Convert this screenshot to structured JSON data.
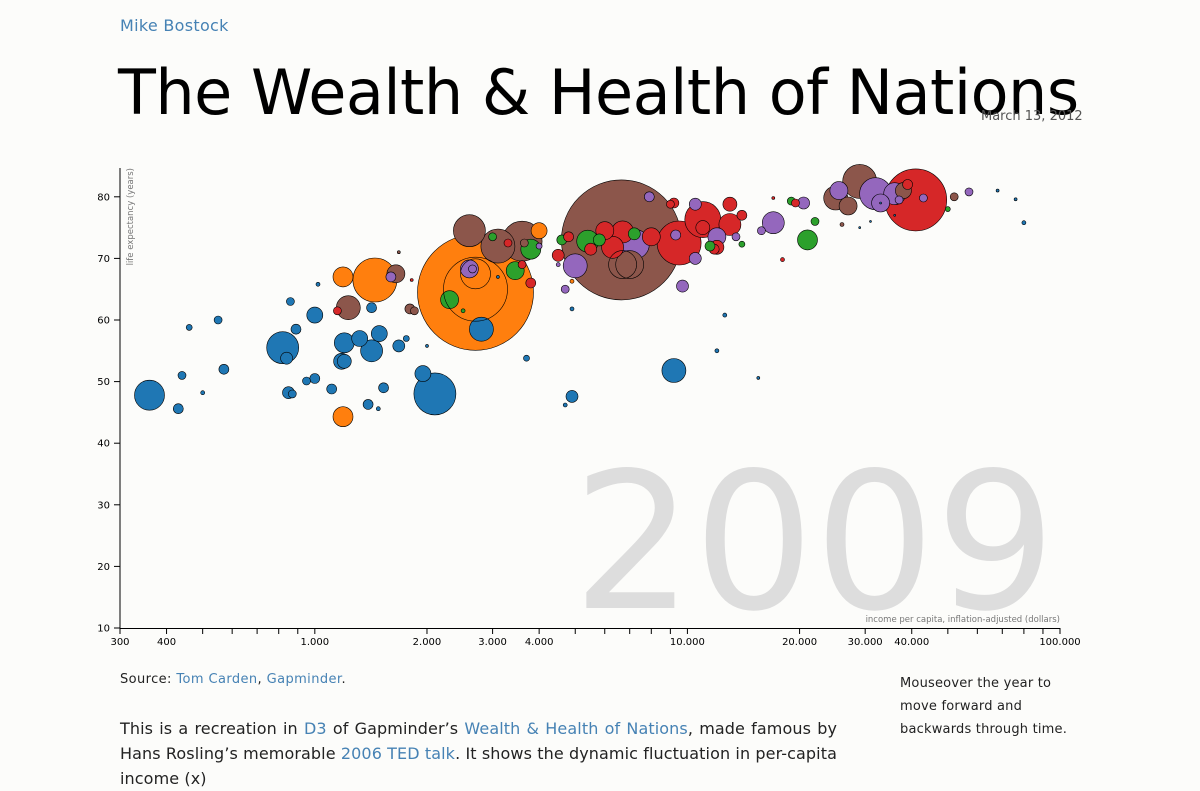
{
  "header": {
    "author": "Mike Bostock",
    "title": "The Wealth & Health of Nations",
    "date": "March 13, 2012"
  },
  "source": {
    "label": "Source:",
    "link1": "Tom Carden",
    "sep": ",",
    "link2": "Gapminder",
    "end": "."
  },
  "sidenote": "Mouseover the year to move forward and backwards through time.",
  "description": {
    "t1": "This is a recreation in ",
    "l1": "D3",
    "t2": " of Gapminder’s ",
    "l2": "Wealth & Health of Nations",
    "t3": ", made famous by Hans Rosling’s memorable ",
    "l3": "2006 TED talk",
    "t4": ". It shows the dynamic fluctuation in per-capita income (x)"
  },
  "colors": {
    "blue": "#1f77b4",
    "orange": "#ff7f0e",
    "green": "#2ca02c",
    "red": "#d62728",
    "purple": "#9467bd",
    "brown": "#8c564b",
    "year_label": "#dddddd"
  },
  "chart_data": {
    "type": "scatter",
    "year": "2009",
    "xlabel": "income per capita, inflation-adjusted (dollars)",
    "ylabel": "life expectancy (years)",
    "x_scale": "log",
    "xlim": [
      300,
      100000
    ],
    "ylim": [
      10,
      85
    ],
    "x_ticks": [
      {
        "v": 300,
        "label": "300"
      },
      {
        "v": 400,
        "label": "400"
      },
      {
        "v": 500,
        "label": ""
      },
      {
        "v": 600,
        "label": ""
      },
      {
        "v": 700,
        "label": ""
      },
      {
        "v": 800,
        "label": ""
      },
      {
        "v": 900,
        "label": ""
      },
      {
        "v": 1000,
        "label": "1.000"
      },
      {
        "v": 2000,
        "label": "2.000"
      },
      {
        "v": 3000,
        "label": "3.000"
      },
      {
        "v": 4000,
        "label": "4.000"
      },
      {
        "v": 5000,
        "label": ""
      },
      {
        "v": 6000,
        "label": ""
      },
      {
        "v": 7000,
        "label": ""
      },
      {
        "v": 8000,
        "label": ""
      },
      {
        "v": 9000,
        "label": ""
      },
      {
        "v": 10000,
        "label": "10.000"
      },
      {
        "v": 20000,
        "label": "20.000"
      },
      {
        "v": 30000,
        "label": "30.000"
      },
      {
        "v": 40000,
        "label": "40.000"
      },
      {
        "v": 50000,
        "label": ""
      },
      {
        "v": 60000,
        "label": ""
      },
      {
        "v": 70000,
        "label": ""
      },
      {
        "v": 80000,
        "label": ""
      },
      {
        "v": 90000,
        "label": ""
      },
      {
        "v": 100000,
        "label": "100.000"
      }
    ],
    "y_ticks": [
      10,
      20,
      30,
      40,
      50,
      60,
      70,
      80
    ],
    "points": [
      {
        "x": 6650,
        "y": 73,
        "r": 60,
        "c": "brown"
      },
      {
        "x": 2700,
        "y": 64.5,
        "r": 58,
        "c": "orange"
      },
      {
        "x": 2100,
        "y": 48,
        "r": 21,
        "c": "blue"
      },
      {
        "x": 41000,
        "y": 79.5,
        "r": 31,
        "c": "red"
      },
      {
        "x": 9500,
        "y": 72.5,
        "r": 22,
        "c": "red"
      },
      {
        "x": 1450,
        "y": 66.5,
        "r": 22,
        "c": "orange"
      },
      {
        "x": 3600,
        "y": 72.8,
        "r": 20,
        "c": "brown"
      },
      {
        "x": 3100,
        "y": 72,
        "r": 17,
        "c": "brown"
      },
      {
        "x": 2600,
        "y": 74.5,
        "r": 16,
        "c": "brown"
      },
      {
        "x": 11000,
        "y": 76.3,
        "r": 18,
        "c": "red"
      },
      {
        "x": 29000,
        "y": 82.5,
        "r": 17,
        "c": "brown"
      },
      {
        "x": 32000,
        "y": 80.5,
        "r": 16,
        "c": "purple"
      },
      {
        "x": 7200,
        "y": 72.3,
        "r": 15,
        "c": "purple"
      },
      {
        "x": 820,
        "y": 55.5,
        "r": 16,
        "c": "blue"
      },
      {
        "x": 360,
        "y": 47.8,
        "r": 15,
        "c": "blue"
      },
      {
        "x": 7000,
        "y": 69,
        "r": 14,
        "c": "brown"
      },
      {
        "x": 9200,
        "y": 51.8,
        "r": 12,
        "c": "blue"
      },
      {
        "x": 2800,
        "y": 58.5,
        "r": 12,
        "c": "blue"
      },
      {
        "x": 1230,
        "y": 62,
        "r": 12,
        "c": "brown"
      },
      {
        "x": 25000,
        "y": 79.8,
        "r": 12,
        "c": "brown"
      },
      {
        "x": 36000,
        "y": 80.5,
        "r": 11,
        "c": "purple"
      },
      {
        "x": 5400,
        "y": 72.8,
        "r": 11,
        "c": "green"
      },
      {
        "x": 5000,
        "y": 68.8,
        "r": 12,
        "c": "purple"
      },
      {
        "x": 17000,
        "y": 75.8,
        "r": 11,
        "c": "purple"
      },
      {
        "x": 13000,
        "y": 75.5,
        "r": 11,
        "c": "red"
      },
      {
        "x": 1420,
        "y": 55,
        "r": 11,
        "c": "blue"
      },
      {
        "x": 1200,
        "y": 56.3,
        "r": 10,
        "c": "blue"
      },
      {
        "x": 1190,
        "y": 44.3,
        "r": 10,
        "c": "orange"
      },
      {
        "x": 1190,
        "y": 67,
        "r": 10,
        "c": "orange"
      },
      {
        "x": 21000,
        "y": 73,
        "r": 10,
        "c": "green"
      },
      {
        "x": 3800,
        "y": 71.5,
        "r": 10,
        "c": "green"
      },
      {
        "x": 3450,
        "y": 68,
        "r": 9,
        "c": "green"
      },
      {
        "x": 2600,
        "y": 68.3,
        "r": 9,
        "c": "purple"
      },
      {
        "x": 1650,
        "y": 67.5,
        "r": 9,
        "c": "brown"
      },
      {
        "x": 2300,
        "y": 63.3,
        "r": 9,
        "c": "green"
      },
      {
        "x": 6700,
        "y": 74.3,
        "r": 11,
        "c": "red"
      },
      {
        "x": 6300,
        "y": 71.8,
        "r": 11,
        "c": "red"
      },
      {
        "x": 6000,
        "y": 74.5,
        "r": 9,
        "c": "red"
      },
      {
        "x": 27000,
        "y": 78.5,
        "r": 9,
        "c": "brown"
      },
      {
        "x": 33000,
        "y": 79,
        "r": 9,
        "c": "purple"
      },
      {
        "x": 38000,
        "y": 81,
        "r": 8,
        "c": "brown"
      },
      {
        "x": 25500,
        "y": 81,
        "r": 9,
        "c": "purple"
      },
      {
        "x": 12000,
        "y": 73.5,
        "r": 9,
        "c": "purple"
      },
      {
        "x": 1000,
        "y": 60.8,
        "r": 8,
        "c": "blue"
      },
      {
        "x": 1320,
        "y": 57,
        "r": 8,
        "c": "blue"
      },
      {
        "x": 1490,
        "y": 57.8,
        "r": 8,
        "c": "blue"
      },
      {
        "x": 1180,
        "y": 53.3,
        "r": 8,
        "c": "blue"
      },
      {
        "x": 1950,
        "y": 51.3,
        "r": 8,
        "c": "blue"
      },
      {
        "x": 1200,
        "y": 53.3,
        "r": 7,
        "c": "blue"
      },
      {
        "x": 4000,
        "y": 74.5,
        "r": 8,
        "c": "orange"
      },
      {
        "x": 13000,
        "y": 78.8,
        "r": 7,
        "c": "red"
      },
      {
        "x": 11000,
        "y": 75,
        "r": 7,
        "c": "red"
      },
      {
        "x": 14000,
        "y": 77,
        "r": 5,
        "c": "red"
      },
      {
        "x": 12000,
        "y": 71.8,
        "r": 7,
        "c": "red"
      },
      {
        "x": 8000,
        "y": 73.5,
        "r": 9,
        "c": "red"
      },
      {
        "x": 5500,
        "y": 71.5,
        "r": 6,
        "c": "red"
      },
      {
        "x": 4500,
        "y": 70.5,
        "r": 6,
        "c": "red"
      },
      {
        "x": 4600,
        "y": 73,
        "r": 5,
        "c": "green"
      },
      {
        "x": 7200,
        "y": 74,
        "r": 6,
        "c": "green"
      },
      {
        "x": 5800,
        "y": 73,
        "r": 6,
        "c": "green"
      },
      {
        "x": 11800,
        "y": 71.5,
        "r": 5,
        "c": "red"
      },
      {
        "x": 4800,
        "y": 73.5,
        "r": 5,
        "c": "red"
      },
      {
        "x": 11500,
        "y": 72,
        "r": 5,
        "c": "green"
      },
      {
        "x": 22000,
        "y": 76,
        "r": 4,
        "c": "green"
      },
      {
        "x": 19000,
        "y": 79.3,
        "r": 4,
        "c": "green"
      },
      {
        "x": 19500,
        "y": 79,
        "r": 4,
        "c": "red"
      },
      {
        "x": 20500,
        "y": 79,
        "r": 6,
        "c": "purple"
      },
      {
        "x": 10500,
        "y": 78.8,
        "r": 6,
        "c": "purple"
      },
      {
        "x": 9200,
        "y": 79,
        "r": 5,
        "c": "red"
      },
      {
        "x": 9000,
        "y": 78.8,
        "r": 4,
        "c": "red"
      },
      {
        "x": 7900,
        "y": 80,
        "r": 5,
        "c": "purple"
      },
      {
        "x": 13500,
        "y": 73.5,
        "r": 4,
        "c": "purple"
      },
      {
        "x": 15800,
        "y": 74.5,
        "r": 4,
        "c": "purple"
      },
      {
        "x": 10500,
        "y": 70,
        "r": 6,
        "c": "purple"
      },
      {
        "x": 9300,
        "y": 73.8,
        "r": 5,
        "c": "purple"
      },
      {
        "x": 9700,
        "y": 65.5,
        "r": 6,
        "c": "purple"
      },
      {
        "x": 4700,
        "y": 65,
        "r": 4,
        "c": "purple"
      },
      {
        "x": 3800,
        "y": 66,
        "r": 5,
        "c": "red"
      },
      {
        "x": 3000,
        "y": 73.5,
        "r": 4,
        "c": "green"
      },
      {
        "x": 3300,
        "y": 72.5,
        "r": 4,
        "c": "red"
      },
      {
        "x": 1800,
        "y": 61.8,
        "r": 5,
        "c": "brown"
      },
      {
        "x": 1850,
        "y": 61.5,
        "r": 4,
        "c": "brown"
      },
      {
        "x": 1150,
        "y": 61.5,
        "r": 4,
        "c": "red"
      },
      {
        "x": 1600,
        "y": 67,
        "r": 5,
        "c": "purple"
      },
      {
        "x": 3600,
        "y": 69,
        "r": 4,
        "c": "red"
      },
      {
        "x": 3650,
        "y": 72.5,
        "r": 4,
        "c": "brown"
      },
      {
        "x": 4000,
        "y": 72,
        "r": 3,
        "c": "purple"
      },
      {
        "x": 570,
        "y": 52,
        "r": 5,
        "c": "blue"
      },
      {
        "x": 500,
        "y": 48.2,
        "r": 2,
        "c": "blue"
      },
      {
        "x": 440,
        "y": 51,
        "r": 4,
        "c": "blue"
      },
      {
        "x": 430,
        "y": 45.6,
        "r": 5,
        "c": "blue"
      },
      {
        "x": 460,
        "y": 58.8,
        "r": 3,
        "c": "blue"
      },
      {
        "x": 550,
        "y": 60,
        "r": 4,
        "c": "blue"
      },
      {
        "x": 860,
        "y": 63,
        "r": 4,
        "c": "blue"
      },
      {
        "x": 890,
        "y": 58.5,
        "r": 5,
        "c": "blue"
      },
      {
        "x": 840,
        "y": 53.8,
        "r": 6,
        "c": "blue"
      },
      {
        "x": 850,
        "y": 48.2,
        "r": 6,
        "c": "blue"
      },
      {
        "x": 870,
        "y": 48,
        "r": 4,
        "c": "blue"
      },
      {
        "x": 950,
        "y": 50.1,
        "r": 4,
        "c": "blue"
      },
      {
        "x": 1000,
        "y": 50.5,
        "r": 5,
        "c": "blue"
      },
      {
        "x": 1020,
        "y": 65.8,
        "r": 2,
        "c": "blue"
      },
      {
        "x": 1110,
        "y": 48.8,
        "r": 5,
        "c": "blue"
      },
      {
        "x": 1390,
        "y": 46.3,
        "r": 5,
        "c": "blue"
      },
      {
        "x": 1480,
        "y": 45.6,
        "r": 2,
        "c": "blue"
      },
      {
        "x": 1530,
        "y": 49,
        "r": 5,
        "c": "blue"
      },
      {
        "x": 1680,
        "y": 55.8,
        "r": 6,
        "c": "blue"
      },
      {
        "x": 1760,
        "y": 57,
        "r": 3,
        "c": "blue"
      },
      {
        "x": 1420,
        "y": 62,
        "r": 5,
        "c": "blue"
      },
      {
        "x": 3700,
        "y": 53.8,
        "r": 3,
        "c": "blue"
      },
      {
        "x": 4700,
        "y": 46.2,
        "r": 2,
        "c": "blue"
      },
      {
        "x": 4900,
        "y": 47.6,
        "r": 6,
        "c": "blue"
      },
      {
        "x": 4900,
        "y": 61.8,
        "r": 2,
        "c": "blue"
      },
      {
        "x": 4900,
        "y": 66.3,
        "r": 2,
        "c": "orange"
      },
      {
        "x": 12000,
        "y": 55,
        "r": 2,
        "c": "blue"
      },
      {
        "x": 12600,
        "y": 60.8,
        "r": 2,
        "c": "blue"
      },
      {
        "x": 15500,
        "y": 50.6,
        "r": 1.5,
        "c": "blue"
      },
      {
        "x": 17000,
        "y": 79.8,
        "r": 1.5,
        "c": "red"
      },
      {
        "x": 18000,
        "y": 69.8,
        "r": 2,
        "c": "red"
      },
      {
        "x": 14000,
        "y": 72.3,
        "r": 3,
        "c": "green"
      },
      {
        "x": 26000,
        "y": 75.5,
        "r": 2,
        "c": "brown"
      },
      {
        "x": 29000,
        "y": 75,
        "r": 1,
        "c": "blue"
      },
      {
        "x": 31000,
        "y": 76,
        "r": 1,
        "c": "blue"
      },
      {
        "x": 33000,
        "y": 79,
        "r": 1,
        "c": "blue"
      },
      {
        "x": 36000,
        "y": 77,
        "r": 1,
        "c": "blue"
      },
      {
        "x": 52000,
        "y": 80,
        "r": 4,
        "c": "brown"
      },
      {
        "x": 50000,
        "y": 78,
        "r": 2.5,
        "c": "green"
      },
      {
        "x": 57000,
        "y": 80.8,
        "r": 4,
        "c": "purple"
      },
      {
        "x": 43000,
        "y": 79.8,
        "r": 4,
        "c": "purple"
      },
      {
        "x": 39000,
        "y": 82,
        "r": 5,
        "c": "red"
      },
      {
        "x": 37000,
        "y": 79.5,
        "r": 4,
        "c": "purple"
      },
      {
        "x": 68000,
        "y": 81,
        "r": 1.5,
        "c": "blue"
      },
      {
        "x": 76000,
        "y": 79.6,
        "r": 1.5,
        "c": "blue"
      },
      {
        "x": 80000,
        "y": 75.8,
        "r": 2,
        "c": "blue"
      },
      {
        "x": 2000,
        "y": 55.8,
        "r": 1.5,
        "c": "blue"
      },
      {
        "x": 2500,
        "y": 61.5,
        "r": 2,
        "c": "green"
      },
      {
        "x": 2650,
        "y": 68.3,
        "r": 4,
        "c": "purple"
      },
      {
        "x": 3100,
        "y": 67,
        "r": 1.5,
        "c": "blue"
      },
      {
        "x": 1680,
        "y": 71,
        "r": 1.5,
        "c": "brown"
      },
      {
        "x": 4500,
        "y": 69,
        "r": 2,
        "c": "purple"
      },
      {
        "x": 1820,
        "y": 66.5,
        "r": 1.5,
        "c": "red"
      }
    ],
    "rings": [
      {
        "x": 2700,
        "y": 67.5,
        "r": 15
      },
      {
        "x": 2700,
        "y": 65,
        "r": 32
      },
      {
        "x": 6700,
        "y": 69,
        "r": 14
      }
    ]
  }
}
